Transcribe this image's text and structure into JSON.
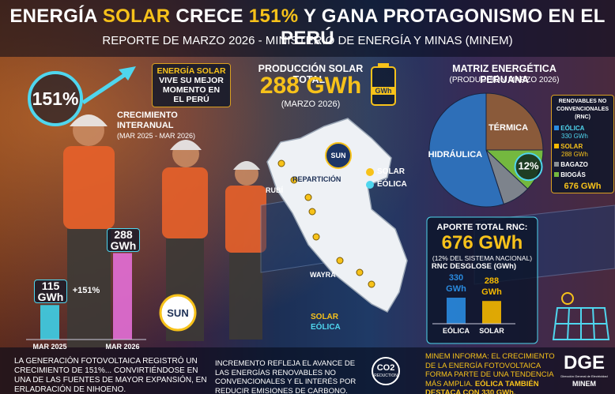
{
  "header": {
    "title_parts": [
      "ENERGÍA",
      "SOLAR",
      "CRECE",
      "151%",
      "Y GANA PROTAGONISMO EN EL PERÚ"
    ],
    "subtitle": "REPORTE DE MARZO 2026 - MINISTERIO DE ENERGÍA Y MINAS (MINEM)"
  },
  "left": {
    "ring": "151%",
    "callout": [
      "ENERGÍA SOLAR",
      "VIVE SU MEJOR",
      "MOMENTO EN",
      "EL PERÚ"
    ],
    "growth": [
      "CRECIMIENTO",
      "INTERANUAL"
    ],
    "period": "(MAR 2025 - MAR 2026)",
    "sun": "SUN",
    "note": "LA GENERACIÓN FOTOVOLTAICA REGISTRÓ UN CRECIMIENTO DE 151%... CONVIRTIÉNDOSE EN UNA DE LAS FUENTES DE MAYOR EXPANSIÓN, EN ERLADRACIÓN DE NIHOENO."
  },
  "center": {
    "heading": "PRODUCCIÓN SOLAR TOTAL:",
    "total": "288 GWh",
    "period": "(MARZO 2026)",
    "battery": "GWh",
    "map": {
      "sun": "SUN",
      "places": [
        "RUBÍ",
        "REPARTICIÓN",
        "WAYRA"
      ],
      "legend": [
        "SOLAR",
        "EÓLICA"
      ],
      "legend2": [
        "SOLAR",
        "EÓLICA"
      ]
    },
    "note": "INCREMENTO REFLEJA EL AVANCE DE LAS ENERGÍAS RENOVABLES NO CONVENCIONALES Y EL INTERÉS POR REDUCIR EMISIONES DE CARBONO.",
    "co2": "CO2",
    "co2_sub": "REDUCTION"
  },
  "right": {
    "heading": "MATRIZ ENERGÉTICA PERUANA",
    "subheading": "(PRODUCCIÓN MARZO 2026)",
    "rnc_box": {
      "title": "RENOVABLES NO CONVENCIONALES (RNC)",
      "items": [
        {
          "name": "EÓLICA",
          "detail": "330 GWh"
        },
        {
          "name": "SOLAR",
          "detail": "288 GWh"
        },
        {
          "name": "BAGAZO"
        },
        {
          "name": "BIOGÁS"
        }
      ],
      "total": "676 GWh"
    },
    "aporte": {
      "heading": "APORTE TOTAL RNC:",
      "total": "676 GWh",
      "share": "(12% DEL SISTEMA NACIONAL)"
    },
    "note": [
      "MINEM INFORMA: EL CRECIMIENTO DE LA ENERGÍA FOTOVOLTAICA FORMA PARTE DE UNA TENDENCIA MÁS AMPLIA.",
      "EÓLICA TAMBIÉN DESTACA CON 330 GWh."
    ],
    "logo": "DGE",
    "logo_sub": "Dirección General de Electricidad",
    "logo_org": "MINEM"
  },
  "chart_data": [
    {
      "type": "bar",
      "categories": [
        "MAR 2025",
        "MAR 2026"
      ],
      "values": [
        115,
        288
      ],
      "value_labels": [
        "115 GWh",
        "288 GWh"
      ],
      "colors": [
        "#3fd0e8",
        "#e46fd6"
      ],
      "annotation": "+151%"
    },
    {
      "type": "pie",
      "categories": [
        "TÉRMICA",
        null,
        null,
        "HIDRÁULICA"
      ],
      "values": [
        25,
        12,
        8,
        55
      ],
      "value_labels": [
        null,
        "12%",
        null,
        null
      ],
      "colors": [
        "#8a5a3a",
        "#74b83f",
        "#7d838c",
        "#2e6fb8"
      ]
    },
    {
      "type": "bar",
      "title": "RNC DESGLOSE (GWh)",
      "categories": [
        "EÓLICA",
        "SOLAR"
      ],
      "values": [
        330,
        288
      ],
      "value_labels": [
        "330 GWh",
        "288 GWh"
      ],
      "colors": [
        "#2a8be0",
        "#f5b800"
      ]
    }
  ]
}
